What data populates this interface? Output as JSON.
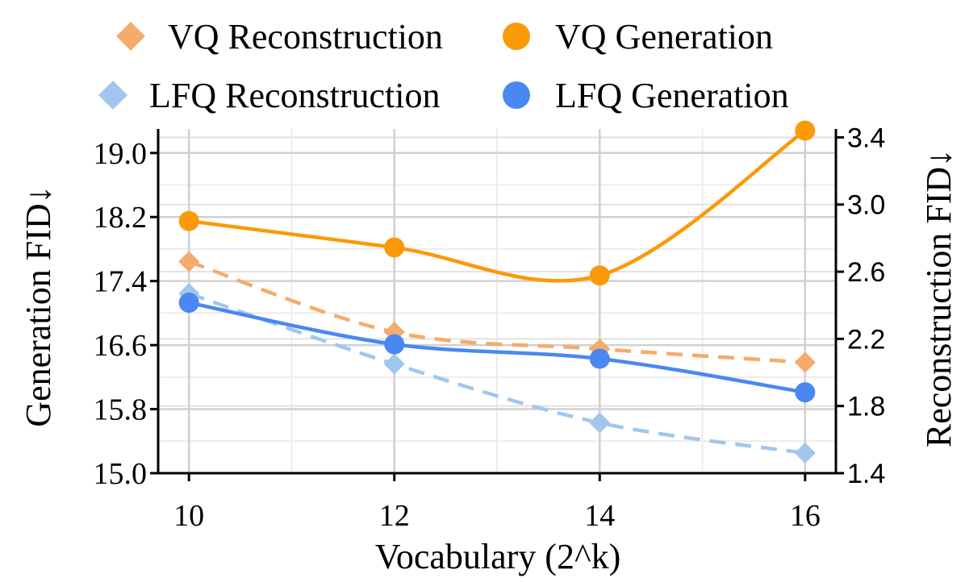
{
  "chart_data": {
    "type": "line",
    "xlabel": "Vocabulary (2^k)",
    "ylabel_left": "Generation FID↓",
    "ylabel_right": "Reconstruction FID↓",
    "x": [
      10,
      12,
      14,
      16
    ],
    "x_ticks": [
      "10",
      "12",
      "14",
      "16"
    ],
    "xlim": [
      9.7,
      16.3
    ],
    "ylim_left": [
      15.0,
      19.3
    ],
    "ylim_right": [
      1.4,
      3.45
    ],
    "yticks_left": [
      "15.0",
      "15.8",
      "16.6",
      "17.4",
      "18.2",
      "19.0"
    ],
    "yticks_right": [
      "1.4",
      "1.8",
      "2.2",
      "2.6",
      "3.0",
      "3.4"
    ],
    "grid": true,
    "legend_position": "top",
    "series": [
      {
        "name": "VQ Reconstruction",
        "axis": "right",
        "style": "dashed",
        "marker": "diamond",
        "color": "#f5ab6b",
        "values": [
          2.66,
          2.24,
          2.14,
          2.06
        ]
      },
      {
        "name": "VQ Generation",
        "axis": "left",
        "style": "solid",
        "marker": "circle",
        "color": "#fb9909",
        "values": [
          18.15,
          17.82,
          17.47,
          19.28
        ]
      },
      {
        "name": "LFQ Reconstruction",
        "axis": "right",
        "style": "dashed",
        "marker": "diamond",
        "color": "#a1c7ee",
        "values": [
          2.47,
          2.05,
          1.7,
          1.52
        ]
      },
      {
        "name": "LFQ Generation",
        "axis": "left",
        "style": "solid",
        "marker": "circle",
        "color": "#4a87f2",
        "values": [
          17.13,
          16.61,
          16.43,
          16.01
        ]
      }
    ]
  }
}
